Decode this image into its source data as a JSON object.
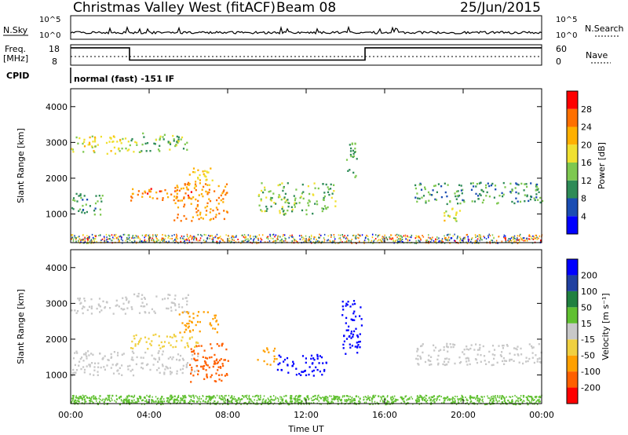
{
  "header": {
    "station": "Christmas Valley West (fitACF)",
    "beam": "Beam 08",
    "date": "25/Jun/2015"
  },
  "top_panels": {
    "nsky_label": "N.Sky",
    "nsky_ticks": [
      "10^5",
      "10^0"
    ],
    "nsearch_label": "N.Search",
    "nsearch_ticks": [
      "10^5",
      "10^0"
    ],
    "freq_label_1": "Freq.",
    "freq_label_2": "[MHz]",
    "freq_ticks": [
      "18",
      "8"
    ],
    "nave_label": "Nave",
    "nave_ticks": [
      "60",
      "0"
    ],
    "cpid_label": "CPID",
    "cpid_text": "normal (fast) -151 IF"
  },
  "colors": {
    "power_scale": [
      "#0000ff",
      "#1a4db3",
      "#2e8b57",
      "#7ec850",
      "#f0e030",
      "#ffb000",
      "#ff7000",
      "#ff0000"
    ],
    "velocity_scale": [
      "#ff0000",
      "#ff6000",
      "#ffa000",
      "#f0d040",
      "#c8c8c8",
      "#60c030",
      "#208040",
      "#2040a0",
      "#0000ff"
    ]
  },
  "chart_data": [
    {
      "type": "heatmap",
      "name": "power",
      "ylabel": "Slant Range [km]",
      "ylim": [
        200,
        4500
      ],
      "yticks": [
        "4000",
        "3000",
        "2000",
        "1000"
      ],
      "colorbar_label": "Power [dB]",
      "colorbar_ticks": [
        "28",
        "24",
        "20",
        "16",
        "12",
        "8",
        "4"
      ],
      "colorbar_range": [
        0,
        32
      ],
      "regions": [
        {
          "t0": 0.0,
          "t1": 3.0,
          "r0": 2700,
          "r1": 3200,
          "v": 18
        },
        {
          "t0": 3.0,
          "t1": 6.0,
          "r0": 2750,
          "r1": 3300,
          "v": 14
        },
        {
          "t0": 0.0,
          "t1": 1.6,
          "r0": 1000,
          "r1": 1600,
          "v": 10
        },
        {
          "t0": 3.0,
          "t1": 6.5,
          "r0": 1400,
          "r1": 1750,
          "v": 26
        },
        {
          "t0": 5.2,
          "t1": 8.0,
          "r0": 800,
          "r1": 1900,
          "v": 24
        },
        {
          "t0": 6.0,
          "t1": 7.2,
          "r0": 1800,
          "r1": 2300,
          "v": 20
        },
        {
          "t0": 9.5,
          "t1": 13.5,
          "r0": 1000,
          "r1": 1900,
          "v": 14
        },
        {
          "t0": 14.0,
          "t1": 14.6,
          "r0": 2000,
          "r1": 3000,
          "v": 12
        },
        {
          "t0": 17.5,
          "t1": 24.0,
          "r0": 1300,
          "r1": 1900,
          "v": 10
        },
        {
          "t0": 19.0,
          "t1": 20.0,
          "r0": 800,
          "r1": 1200,
          "v": 18
        }
      ]
    },
    {
      "type": "heatmap",
      "name": "velocity",
      "xlabel": "Time UT",
      "ylabel": "Slant Range [km]",
      "ylim": [
        200,
        4500
      ],
      "yticks": [
        "4000",
        "3000",
        "2000",
        "1000"
      ],
      "xticks": [
        "00:00",
        "04:00",
        "08:00",
        "12:00",
        "16:00",
        "20:00",
        "00:00"
      ],
      "colorbar_label": "Velocity [m s⁻¹]",
      "colorbar_ticks": [
        "200",
        "100",
        "50",
        "15",
        "-15",
        "-50",
        "-100",
        "-200"
      ],
      "colorbar_range": [
        -250,
        250
      ],
      "regions": [
        {
          "t0": 0.0,
          "t1": 3.0,
          "r0": 2700,
          "r1": 3200,
          "v": 0
        },
        {
          "t0": 3.0,
          "t1": 6.0,
          "r0": 2750,
          "r1": 3300,
          "v": 0
        },
        {
          "t0": 0.0,
          "t1": 6.5,
          "r0": 1000,
          "r1": 1700,
          "v": 0
        },
        {
          "t0": 3.0,
          "t1": 6.5,
          "r0": 1750,
          "r1": 2200,
          "v": -40
        },
        {
          "t0": 5.5,
          "t1": 7.5,
          "r0": 2200,
          "r1": 2800,
          "v": -60
        },
        {
          "t0": 6.0,
          "t1": 8.0,
          "r0": 800,
          "r1": 1900,
          "v": -190
        },
        {
          "t0": 9.5,
          "t1": 10.5,
          "r0": 1300,
          "r1": 1800,
          "v": -80
        },
        {
          "t0": 10.5,
          "t1": 13.0,
          "r0": 1000,
          "r1": 1600,
          "v": 210
        },
        {
          "t0": 13.8,
          "t1": 14.8,
          "r0": 1600,
          "r1": 3100,
          "v": 220
        },
        {
          "t0": 17.5,
          "t1": 24.0,
          "r0": 1300,
          "r1": 1900,
          "v": 0
        },
        {
          "t0": 0.0,
          "t1": 24.0,
          "r0": 200,
          "r1": 450,
          "v": 30
        }
      ]
    },
    {
      "type": "line",
      "name": "frequency",
      "ylim": [
        8,
        18
      ],
      "segments": [
        {
          "t0": 0.0,
          "t1": 3.0,
          "v": 16.5
        },
        {
          "t0": 3.0,
          "t1": 15.0,
          "v": 10.5
        },
        {
          "t0": 15.0,
          "t1": 24.0,
          "v": 16.5
        }
      ]
    }
  ]
}
